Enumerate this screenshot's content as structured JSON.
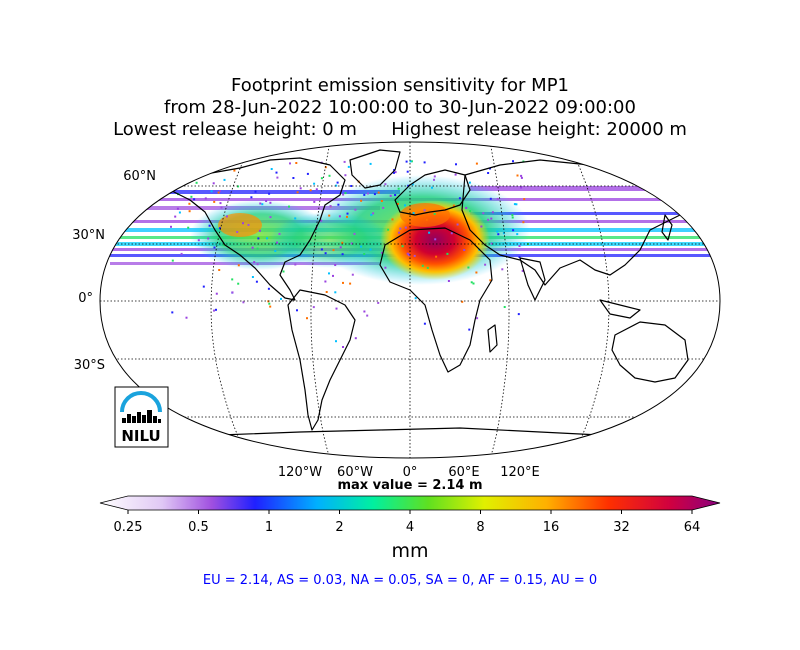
{
  "title": {
    "line1": "Footprint emission sensitivity for MP1",
    "line2": "from 28-Jun-2022 10:00:00 to 30-Jun-2022 09:00:00",
    "line3": "Lowest release height: 0 m      Highest release height: 20000 m"
  },
  "map": {
    "projection": "Robinson",
    "lat_labels": [
      "60°N",
      "30°N",
      "0°",
      "30°S"
    ],
    "lon_labels": [
      "120°W",
      "60°W",
      "0°",
      "60°E",
      "120°E"
    ],
    "max_value_label": "max value = 2.14 m"
  },
  "logo": {
    "text": "NILU",
    "color": "#000000",
    "arc_color": "#1aa3dd"
  },
  "colorbar": {
    "ticks": [
      "0.25",
      "0.5",
      "1",
      "2",
      "4",
      "8",
      "16",
      "32",
      "64"
    ],
    "unit": "mm",
    "colors": [
      "#ffffff",
      "#d8b4f0",
      "#9a40e0",
      "#2020ff",
      "#00d0ff",
      "#20e060",
      "#c8f000",
      "#ffc000",
      "#ff5000",
      "#e00030",
      "#900080"
    ]
  },
  "summary": "EU = 2.14,  AS = 0.03,  NA = 0.05,  SA = 0,  AF = 0.15,  AU = 0"
}
